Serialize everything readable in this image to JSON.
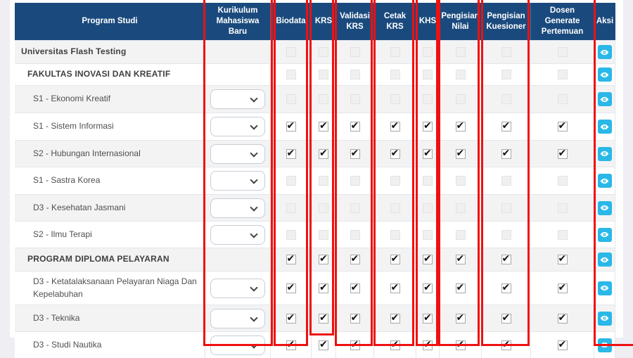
{
  "colors": {
    "header_bg": "#1a4a7d",
    "header_text": "#ffffff",
    "page_bg": "#efeef2",
    "row_stripe_bg": "#f3f3f4",
    "row_bg": "#ffffff",
    "table_border": "#e3e6ea",
    "text": "#4f4f4f",
    "eye_button_bg": "#29b8e8",
    "annotation_red": "#ee1111",
    "checkmark": "#141414"
  },
  "icons": {
    "action_button": "eye-icon",
    "dropdown_indicator": "chevron-down-icon",
    "checked_glyph": "✔"
  },
  "table": {
    "columns": [
      {
        "key": "program_studi",
        "label": "Program Studi"
      },
      {
        "key": "kurikulum_mahasiswa_baru",
        "label": "Kurikulum Mahasiswa Baru"
      },
      {
        "key": "biodata",
        "label": "Biodata"
      },
      {
        "key": "krs",
        "label": "KRS"
      },
      {
        "key": "validasi_krs",
        "label": "Validasi KRS"
      },
      {
        "key": "cetak_krs",
        "label": "Cetak KRS"
      },
      {
        "key": "khs",
        "label": "KHS"
      },
      {
        "key": "pengisian_nilai",
        "label": "Pengisian Nilai"
      },
      {
        "key": "pengisian_kuesioner",
        "label": "Pengisian Kuesioner"
      },
      {
        "key": "dosen_generate_pertemuan",
        "label": "Dosen Generate Pertemuan"
      },
      {
        "key": "aksi",
        "label": "Aksi"
      }
    ],
    "checkbox_columns": [
      "biodata",
      "krs",
      "validasi_krs",
      "cetak_krs",
      "khs",
      "pengisian_nilai",
      "pengisian_kuesioner",
      "dosen_generate_pertemuan"
    ],
    "rows": [
      {
        "label": "Universitas Flash Testing",
        "level": 0,
        "bold": true,
        "has_dropdown": false,
        "checkbox_state": "disabled"
      },
      {
        "label": "FAKULTAS INOVASI DAN KREATIF",
        "level": 1,
        "bold": true,
        "has_dropdown": false,
        "checkbox_state": "disabled"
      },
      {
        "label": "S1 - Ekonomi Kreatif",
        "level": 2,
        "bold": false,
        "has_dropdown": true,
        "dropdown_value": "",
        "checkbox_state": "disabled"
      },
      {
        "label": "S1 - Sistem Informasi",
        "level": 2,
        "bold": false,
        "has_dropdown": true,
        "dropdown_value": "",
        "checkbox_state": "checked"
      },
      {
        "label": "S2 - Hubungan Internasional",
        "level": 2,
        "bold": false,
        "has_dropdown": true,
        "dropdown_value": "",
        "checkbox_state": "checked"
      },
      {
        "label": "S1 - Sastra Korea",
        "level": 2,
        "bold": false,
        "has_dropdown": true,
        "dropdown_value": "",
        "checkbox_state": "disabled"
      },
      {
        "label": "D3 - Kesehatan Jasmani",
        "level": 2,
        "bold": false,
        "has_dropdown": true,
        "dropdown_value": "",
        "checkbox_state": "disabled"
      },
      {
        "label": "S2 - Ilmu Terapi",
        "level": 2,
        "bold": false,
        "has_dropdown": true,
        "dropdown_value": "",
        "checkbox_state": "disabled"
      },
      {
        "label": "PROGRAM DIPLOMA PELAYARAN",
        "level": 1,
        "bold": true,
        "has_dropdown": false,
        "checkbox_state": "checked"
      },
      {
        "label": "D3 - Ketatalaksanaan Pelayaran Niaga Dan Kepelabuhan",
        "level": 2,
        "bold": false,
        "has_dropdown": true,
        "dropdown_value": "",
        "checkbox_state": "checked"
      },
      {
        "label": "D3 - Teknika",
        "level": 2,
        "bold": false,
        "has_dropdown": true,
        "dropdown_value": "",
        "checkbox_state": "checked"
      },
      {
        "label": "D3 - Studi Nautika",
        "level": 2,
        "bold": false,
        "has_dropdown": true,
        "dropdown_value": "",
        "checkbox_state": "checked"
      }
    ],
    "action": "view"
  },
  "annotations": {
    "highlighted_columns": [
      "kurikulum_mahasiswa_baru",
      "biodata",
      "krs",
      "validasi_krs",
      "cetak_krs",
      "khs",
      "pengisian_nilai",
      "pengisian_kuesioner",
      "aksi"
    ]
  }
}
